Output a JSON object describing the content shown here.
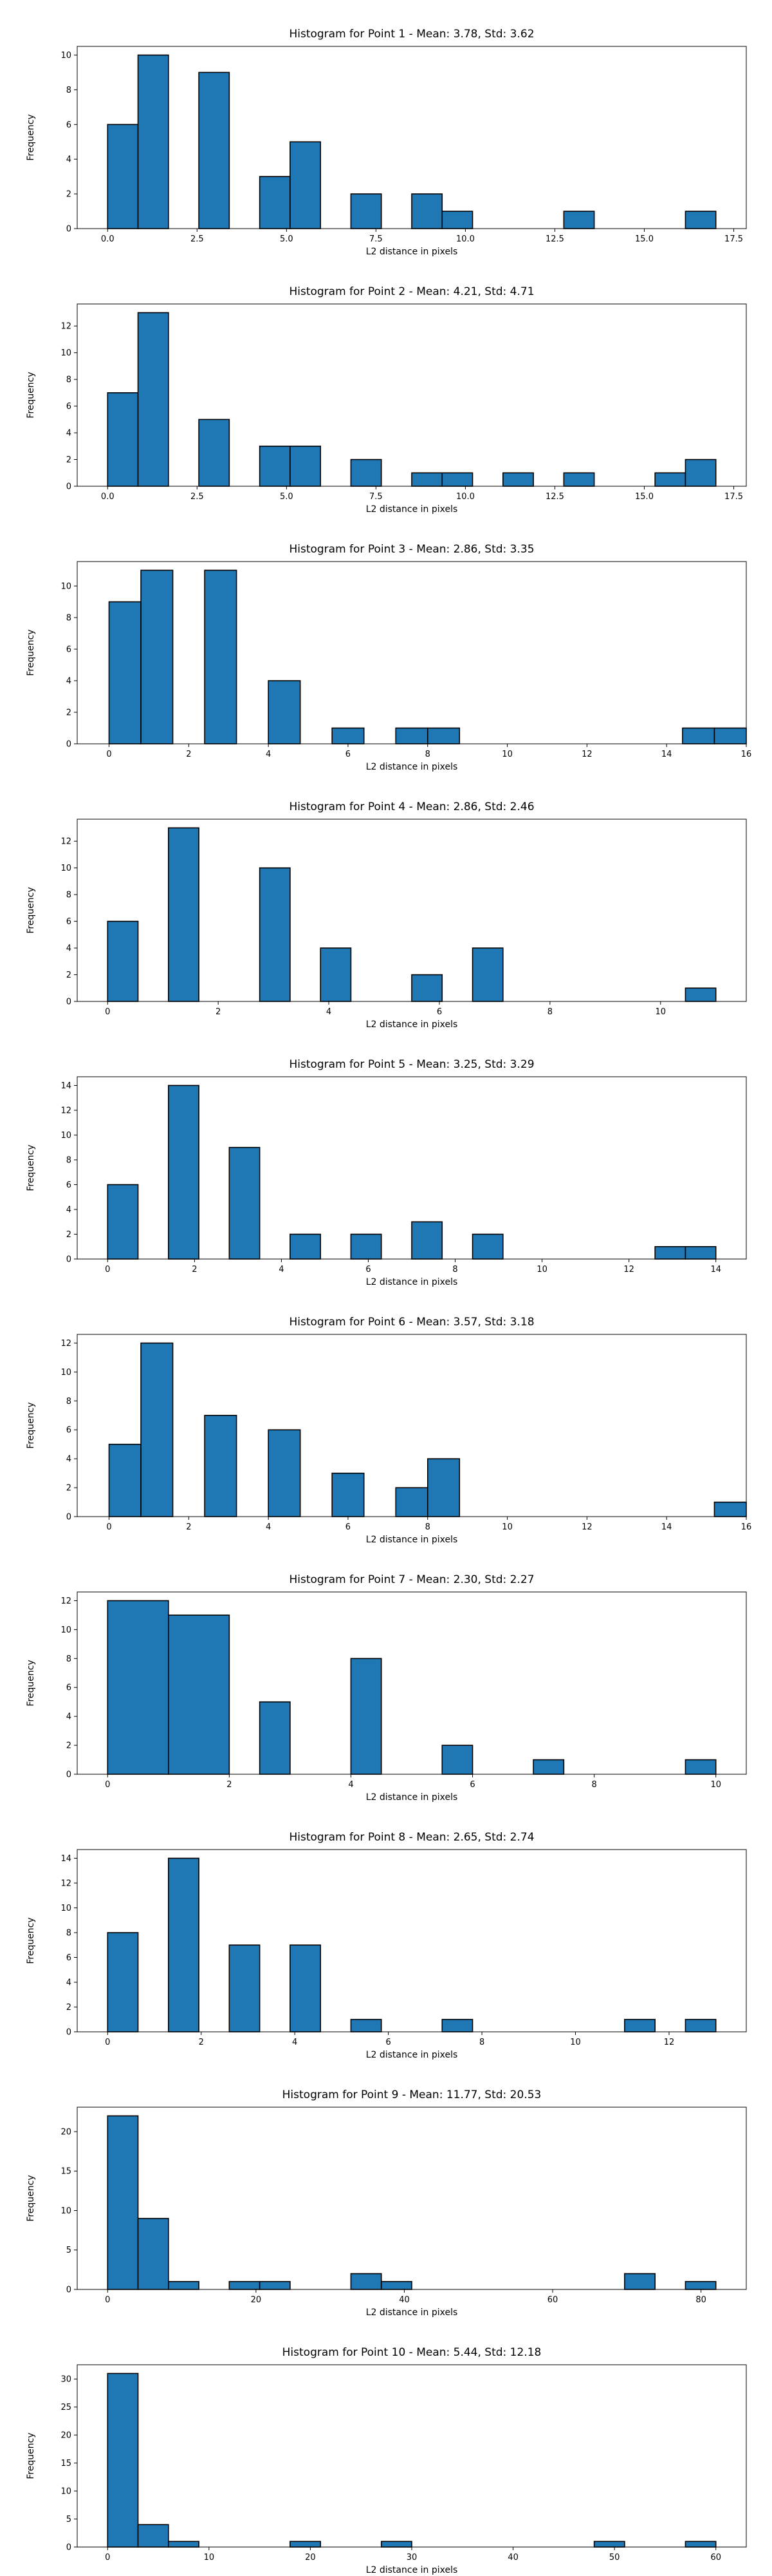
{
  "chart_data": [
    {
      "type": "bar",
      "title": "Histogram for Point 1 - Mean: 3.78, Std: 3.62",
      "xlabel": "L2 distance in pixels",
      "ylabel": "Frequency",
      "xlim": [
        -0.85,
        17.85
      ],
      "ylim": [
        0,
        10.5
      ],
      "xticks": [
        0,
        2.5,
        5,
        7.5,
        10,
        12.5,
        15,
        17.5
      ],
      "xtick_labels": [
        "0.0",
        "2.5",
        "5.0",
        "7.5",
        "10.0",
        "12.5",
        "15.0",
        "17.5"
      ],
      "yticks": [
        0,
        2,
        4,
        6,
        8,
        10
      ],
      "bars": [
        {
          "x0": 0.0,
          "x1": 0.85,
          "value": 6
        },
        {
          "x0": 0.85,
          "x1": 1.7,
          "value": 10
        },
        {
          "x0": 2.55,
          "x1": 3.4,
          "value": 9
        },
        {
          "x0": 4.25,
          "x1": 5.1,
          "value": 3
        },
        {
          "x0": 5.1,
          "x1": 5.95,
          "value": 5
        },
        {
          "x0": 6.8,
          "x1": 7.65,
          "value": 2
        },
        {
          "x0": 8.5,
          "x1": 9.35,
          "value": 2
        },
        {
          "x0": 9.35,
          "x1": 10.2,
          "value": 1
        },
        {
          "x0": 12.75,
          "x1": 13.6,
          "value": 1
        },
        {
          "x0": 16.15,
          "x1": 17.0,
          "value": 1
        }
      ]
    },
    {
      "type": "bar",
      "title": "Histogram for Point 2 - Mean: 4.21, Std: 4.71",
      "xlabel": "L2 distance in pixels",
      "ylabel": "Frequency",
      "xlim": [
        -0.85,
        17.85
      ],
      "ylim": [
        0,
        13.65
      ],
      "xticks": [
        0,
        2.5,
        5,
        7.5,
        10,
        12.5,
        15,
        17.5
      ],
      "xtick_labels": [
        "0.0",
        "2.5",
        "5.0",
        "7.5",
        "10.0",
        "12.5",
        "15.0",
        "17.5"
      ],
      "yticks": [
        0,
        2,
        4,
        6,
        8,
        10,
        12
      ],
      "bars": [
        {
          "x0": 0.0,
          "x1": 0.85,
          "value": 7
        },
        {
          "x0": 0.85,
          "x1": 1.7,
          "value": 13
        },
        {
          "x0": 2.55,
          "x1": 3.4,
          "value": 5
        },
        {
          "x0": 4.25,
          "x1": 5.1,
          "value": 3
        },
        {
          "x0": 5.1,
          "x1": 5.95,
          "value": 3
        },
        {
          "x0": 6.8,
          "x1": 7.65,
          "value": 2
        },
        {
          "x0": 8.5,
          "x1": 9.35,
          "value": 1
        },
        {
          "x0": 9.35,
          "x1": 10.2,
          "value": 1
        },
        {
          "x0": 11.05,
          "x1": 11.9,
          "value": 1
        },
        {
          "x0": 12.75,
          "x1": 13.6,
          "value": 1
        },
        {
          "x0": 15.3,
          "x1": 16.15,
          "value": 1
        },
        {
          "x0": 16.15,
          "x1": 17.0,
          "value": 2
        }
      ]
    },
    {
      "type": "bar",
      "title": "Histogram for Point 3 - Mean: 2.86, Std: 3.35",
      "xlabel": "L2 distance in pixels",
      "ylabel": "Frequency",
      "xlim": [
        -0.8,
        16.0
      ],
      "ylim": [
        0,
        11.55
      ],
      "xticks": [
        0,
        2,
        4,
        6,
        8,
        10,
        12,
        14,
        16
      ],
      "xtick_labels": [
        "0",
        "2",
        "4",
        "6",
        "8",
        "10",
        "12",
        "14",
        "16"
      ],
      "yticks": [
        0,
        2,
        4,
        6,
        8,
        10
      ],
      "bars": [
        {
          "x0": 0.0,
          "x1": 0.8,
          "value": 9
        },
        {
          "x0": 0.8,
          "x1": 1.6,
          "value": 11
        },
        {
          "x0": 2.4,
          "x1": 3.2,
          "value": 11
        },
        {
          "x0": 4.0,
          "x1": 4.8,
          "value": 4
        },
        {
          "x0": 5.6,
          "x1": 6.4,
          "value": 1
        },
        {
          "x0": 7.2,
          "x1": 8.0,
          "value": 1
        },
        {
          "x0": 8.0,
          "x1": 8.8,
          "value": 1
        },
        {
          "x0": 14.4,
          "x1": 15.2,
          "value": 1
        },
        {
          "x0": 15.2,
          "x1": 16.0,
          "value": 1
        }
      ]
    },
    {
      "type": "bar",
      "title": "Histogram for Point 4 - Mean: 2.86, Std: 2.46",
      "xlabel": "L2 distance in pixels",
      "ylabel": "Frequency",
      "xlim": [
        -0.55,
        11.55
      ],
      "ylim": [
        0,
        13.65
      ],
      "xticks": [
        0,
        2,
        4,
        6,
        8,
        10
      ],
      "xtick_labels": [
        "0",
        "2",
        "4",
        "6",
        "8",
        "10"
      ],
      "yticks": [
        0,
        2,
        4,
        6,
        8,
        10,
        12
      ],
      "bars": [
        {
          "x0": 0.0,
          "x1": 0.55,
          "value": 6
        },
        {
          "x0": 1.1,
          "x1": 1.65,
          "value": 13
        },
        {
          "x0": 2.75,
          "x1": 3.3,
          "value": 10
        },
        {
          "x0": 3.85,
          "x1": 4.4,
          "value": 4
        },
        {
          "x0": 5.5,
          "x1": 6.05,
          "value": 2
        },
        {
          "x0": 6.6,
          "x1": 7.15,
          "value": 4
        },
        {
          "x0": 10.45,
          "x1": 11.0,
          "value": 1
        }
      ]
    },
    {
      "type": "bar",
      "title": "Histogram for Point 5 - Mean: 3.25, Std: 3.29",
      "xlabel": "L2 distance in pixels",
      "ylabel": "Frequency",
      "xlim": [
        -0.7,
        14.7
      ],
      "ylim": [
        0,
        14.7
      ],
      "xticks": [
        0,
        2,
        4,
        6,
        8,
        10,
        12,
        14
      ],
      "xtick_labels": [
        "0",
        "2",
        "4",
        "6",
        "8",
        "10",
        "12",
        "14"
      ],
      "yticks": [
        0,
        2,
        4,
        6,
        8,
        10,
        12,
        14
      ],
      "bars": [
        {
          "x0": 0.0,
          "x1": 0.7,
          "value": 6
        },
        {
          "x0": 1.4,
          "x1": 2.1,
          "value": 14
        },
        {
          "x0": 2.8,
          "x1": 3.5,
          "value": 9
        },
        {
          "x0": 4.2,
          "x1": 4.9,
          "value": 2
        },
        {
          "x0": 5.6,
          "x1": 6.3,
          "value": 2
        },
        {
          "x0": 7.0,
          "x1": 7.7,
          "value": 3
        },
        {
          "x0": 8.4,
          "x1": 9.1,
          "value": 2
        },
        {
          "x0": 12.6,
          "x1": 13.3,
          "value": 1
        },
        {
          "x0": 13.3,
          "x1": 14.0,
          "value": 1
        }
      ]
    },
    {
      "type": "bar",
      "title": "Histogram for Point 6 - Mean: 3.57, Std: 3.18",
      "xlabel": "L2 distance in pixels",
      "ylabel": "Frequency",
      "xlim": [
        -0.8,
        16.0
      ],
      "ylim": [
        0,
        12.6
      ],
      "xticks": [
        0,
        2,
        4,
        6,
        8,
        10,
        12,
        14,
        16
      ],
      "xtick_labels": [
        "0",
        "2",
        "4",
        "6",
        "8",
        "10",
        "12",
        "14",
        "16"
      ],
      "yticks": [
        0,
        2,
        4,
        6,
        8,
        10,
        12
      ],
      "bars": [
        {
          "x0": 0.0,
          "x1": 0.8,
          "value": 5
        },
        {
          "x0": 0.8,
          "x1": 1.6,
          "value": 12
        },
        {
          "x0": 2.4,
          "x1": 3.2,
          "value": 7
        },
        {
          "x0": 4.0,
          "x1": 4.8,
          "value": 6
        },
        {
          "x0": 5.6,
          "x1": 6.4,
          "value": 3
        },
        {
          "x0": 7.2,
          "x1": 8.0,
          "value": 2
        },
        {
          "x0": 8.0,
          "x1": 8.8,
          "value": 4
        },
        {
          "x0": 15.2,
          "x1": 16.0,
          "value": 1
        }
      ]
    },
    {
      "type": "bar",
      "title": "Histogram for Point 7 - Mean: 2.30, Std: 2.27",
      "xlabel": "L2 distance in pixels",
      "ylabel": "Frequency",
      "xlim": [
        -0.5,
        10.5
      ],
      "ylim": [
        0,
        12.6
      ],
      "xticks": [
        0,
        2,
        4,
        6,
        8,
        10
      ],
      "xtick_labels": [
        "0",
        "2",
        "4",
        "6",
        "8",
        "10"
      ],
      "yticks": [
        0,
        2,
        4,
        6,
        8,
        10,
        12
      ],
      "bars": [
        {
          "x0": 0.0,
          "x1": 1.0,
          "value": 12
        },
        {
          "x0": 1.0,
          "x1": 2.0,
          "value": 11
        },
        {
          "x0": 2.5,
          "x1": 3.0,
          "value": 5
        },
        {
          "x0": 4.0,
          "x1": 4.5,
          "value": 8
        },
        {
          "x0": 5.5,
          "x1": 6.0,
          "value": 2
        },
        {
          "x0": 7.0,
          "x1": 7.5,
          "value": 1
        },
        {
          "x0": 9.5,
          "x1": 10.0,
          "value": 1
        }
      ]
    },
    {
      "type": "bar",
      "title": "Histogram for Point 8 - Mean: 2.65, Std: 2.74",
      "xlabel": "L2 distance in pixels",
      "ylabel": "Frequency",
      "xlim": [
        -0.65,
        13.65
      ],
      "ylim": [
        0,
        14.7
      ],
      "xticks": [
        0,
        2,
        4,
        6,
        8,
        10,
        12
      ],
      "xtick_labels": [
        "0",
        "2",
        "4",
        "6",
        "8",
        "10",
        "12"
      ],
      "yticks": [
        0,
        2,
        4,
        6,
        8,
        10,
        12,
        14
      ],
      "bars": [
        {
          "x0": 0.0,
          "x1": 0.65,
          "value": 8
        },
        {
          "x0": 1.3,
          "x1": 1.95,
          "value": 14
        },
        {
          "x0": 2.6,
          "x1": 3.25,
          "value": 7
        },
        {
          "x0": 3.9,
          "x1": 4.55,
          "value": 7
        },
        {
          "x0": 5.2,
          "x1": 5.85,
          "value": 1
        },
        {
          "x0": 7.15,
          "x1": 7.8,
          "value": 1
        },
        {
          "x0": 11.05,
          "x1": 11.7,
          "value": 1
        },
        {
          "x0": 12.35,
          "x1": 13.0,
          "value": 1
        }
      ]
    },
    {
      "type": "bar",
      "title": "Histogram for Point 9 - Mean: 11.77, Std: 20.53",
      "xlabel": "L2 distance in pixels",
      "ylabel": "Frequency",
      "xlim": [
        -4.1,
        86.1
      ],
      "ylim": [
        0,
        23.1
      ],
      "xticks": [
        0,
        20,
        40,
        60,
        80
      ],
      "xtick_labels": [
        "0",
        "20",
        "40",
        "60",
        "80"
      ],
      "yticks": [
        0,
        5,
        10,
        15,
        20
      ],
      "bars": [
        {
          "x0": 0.0,
          "x1": 4.1,
          "value": 22
        },
        {
          "x0": 4.1,
          "x1": 8.2,
          "value": 9
        },
        {
          "x0": 8.2,
          "x1": 12.3,
          "value": 1
        },
        {
          "x0": 16.4,
          "x1": 20.5,
          "value": 1
        },
        {
          "x0": 20.5,
          "x1": 24.6,
          "value": 1
        },
        {
          "x0": 32.8,
          "x1": 36.9,
          "value": 2
        },
        {
          "x0": 36.9,
          "x1": 41.0,
          "value": 1
        },
        {
          "x0": 69.7,
          "x1": 73.8,
          "value": 2
        },
        {
          "x0": 77.9,
          "x1": 82.0,
          "value": 1
        }
      ]
    },
    {
      "type": "bar",
      "title": "Histogram for Point 10 - Mean: 5.44, Std: 12.18",
      "xlabel": "L2 distance in pixels",
      "ylabel": "Frequency",
      "xlim": [
        -3.0,
        63.0
      ],
      "ylim": [
        0,
        32.55
      ],
      "xticks": [
        0,
        10,
        20,
        30,
        40,
        50,
        60
      ],
      "xtick_labels": [
        "0",
        "10",
        "20",
        "30",
        "40",
        "50",
        "60"
      ],
      "yticks": [
        0,
        5,
        10,
        15,
        20,
        25,
        30
      ],
      "bars": [
        {
          "x0": 0.0,
          "x1": 3.0,
          "value": 31
        },
        {
          "x0": 3.0,
          "x1": 6.0,
          "value": 4
        },
        {
          "x0": 6.0,
          "x1": 9.0,
          "value": 1
        },
        {
          "x0": 18.0,
          "x1": 21.0,
          "value": 1
        },
        {
          "x0": 27.0,
          "x1": 30.0,
          "value": 1
        },
        {
          "x0": 48.0,
          "x1": 51.0,
          "value": 1
        },
        {
          "x0": 57.0,
          "x1": 60.0,
          "value": 1
        }
      ]
    }
  ]
}
